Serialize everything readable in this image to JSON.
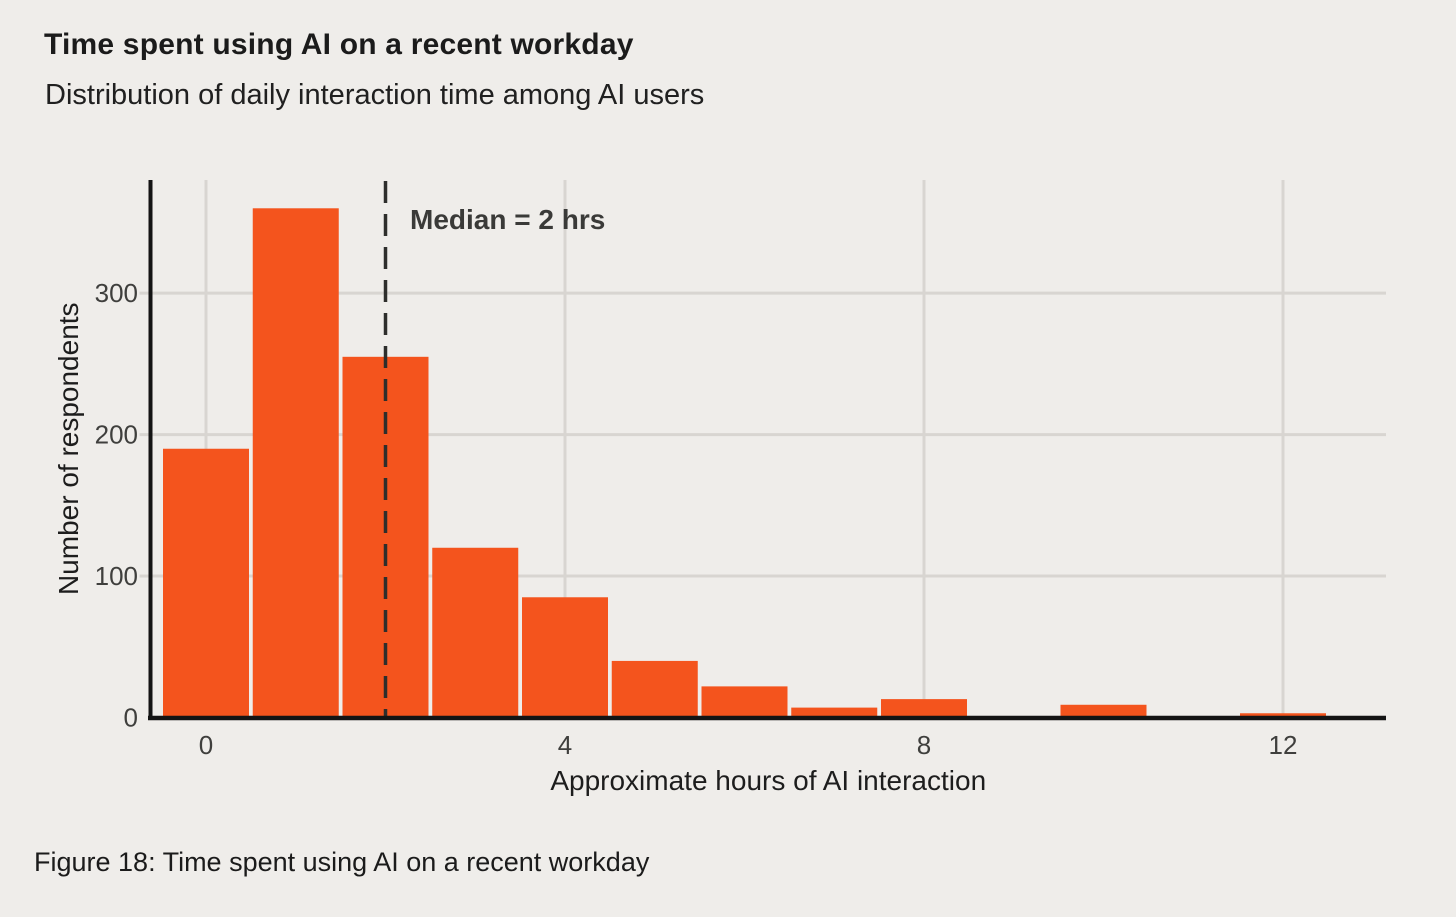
{
  "caption": "Figure 18: Time spent using AI on a recent workday",
  "colors": {
    "background": "#EFEDEA",
    "bar": "#F4541D",
    "gridline": "#D8D5D1",
    "axis": "#141414",
    "median_line": "#2E2E2C",
    "heading_text": "#1D1D1D",
    "tick_text": "#3F3F3D",
    "annotation_text": "#3A3A38"
  },
  "chart_data": {
    "type": "bar",
    "title": "Time spent using AI on a recent workday",
    "subtitle": "Distribution of daily interaction time among AI users",
    "xlabel": "Approximate hours of AI interaction",
    "ylabel": "Number of respondents",
    "x": [
      0,
      1,
      2,
      3,
      4,
      5,
      6,
      7,
      8,
      9,
      10,
      11,
      12
    ],
    "values": [
      190,
      360,
      255,
      120,
      85,
      40,
      22,
      7,
      13,
      1,
      9,
      0,
      3
    ],
    "x_ticks": [
      "0",
      "4",
      "8",
      "12"
    ],
    "x_tick_values": [
      0,
      4,
      8,
      12
    ],
    "y_ticks": [
      "0",
      "100",
      "200",
      "300"
    ],
    "y_tick_values": [
      0,
      100,
      200,
      300
    ],
    "xlim": [
      -0.62,
      13.15
    ],
    "ylim": [
      0,
      380
    ],
    "grid": true,
    "legend": "none",
    "annotation": {
      "text": "Median = 2 hrs",
      "x": 2,
      "style": "dashed-vertical-line"
    }
  }
}
